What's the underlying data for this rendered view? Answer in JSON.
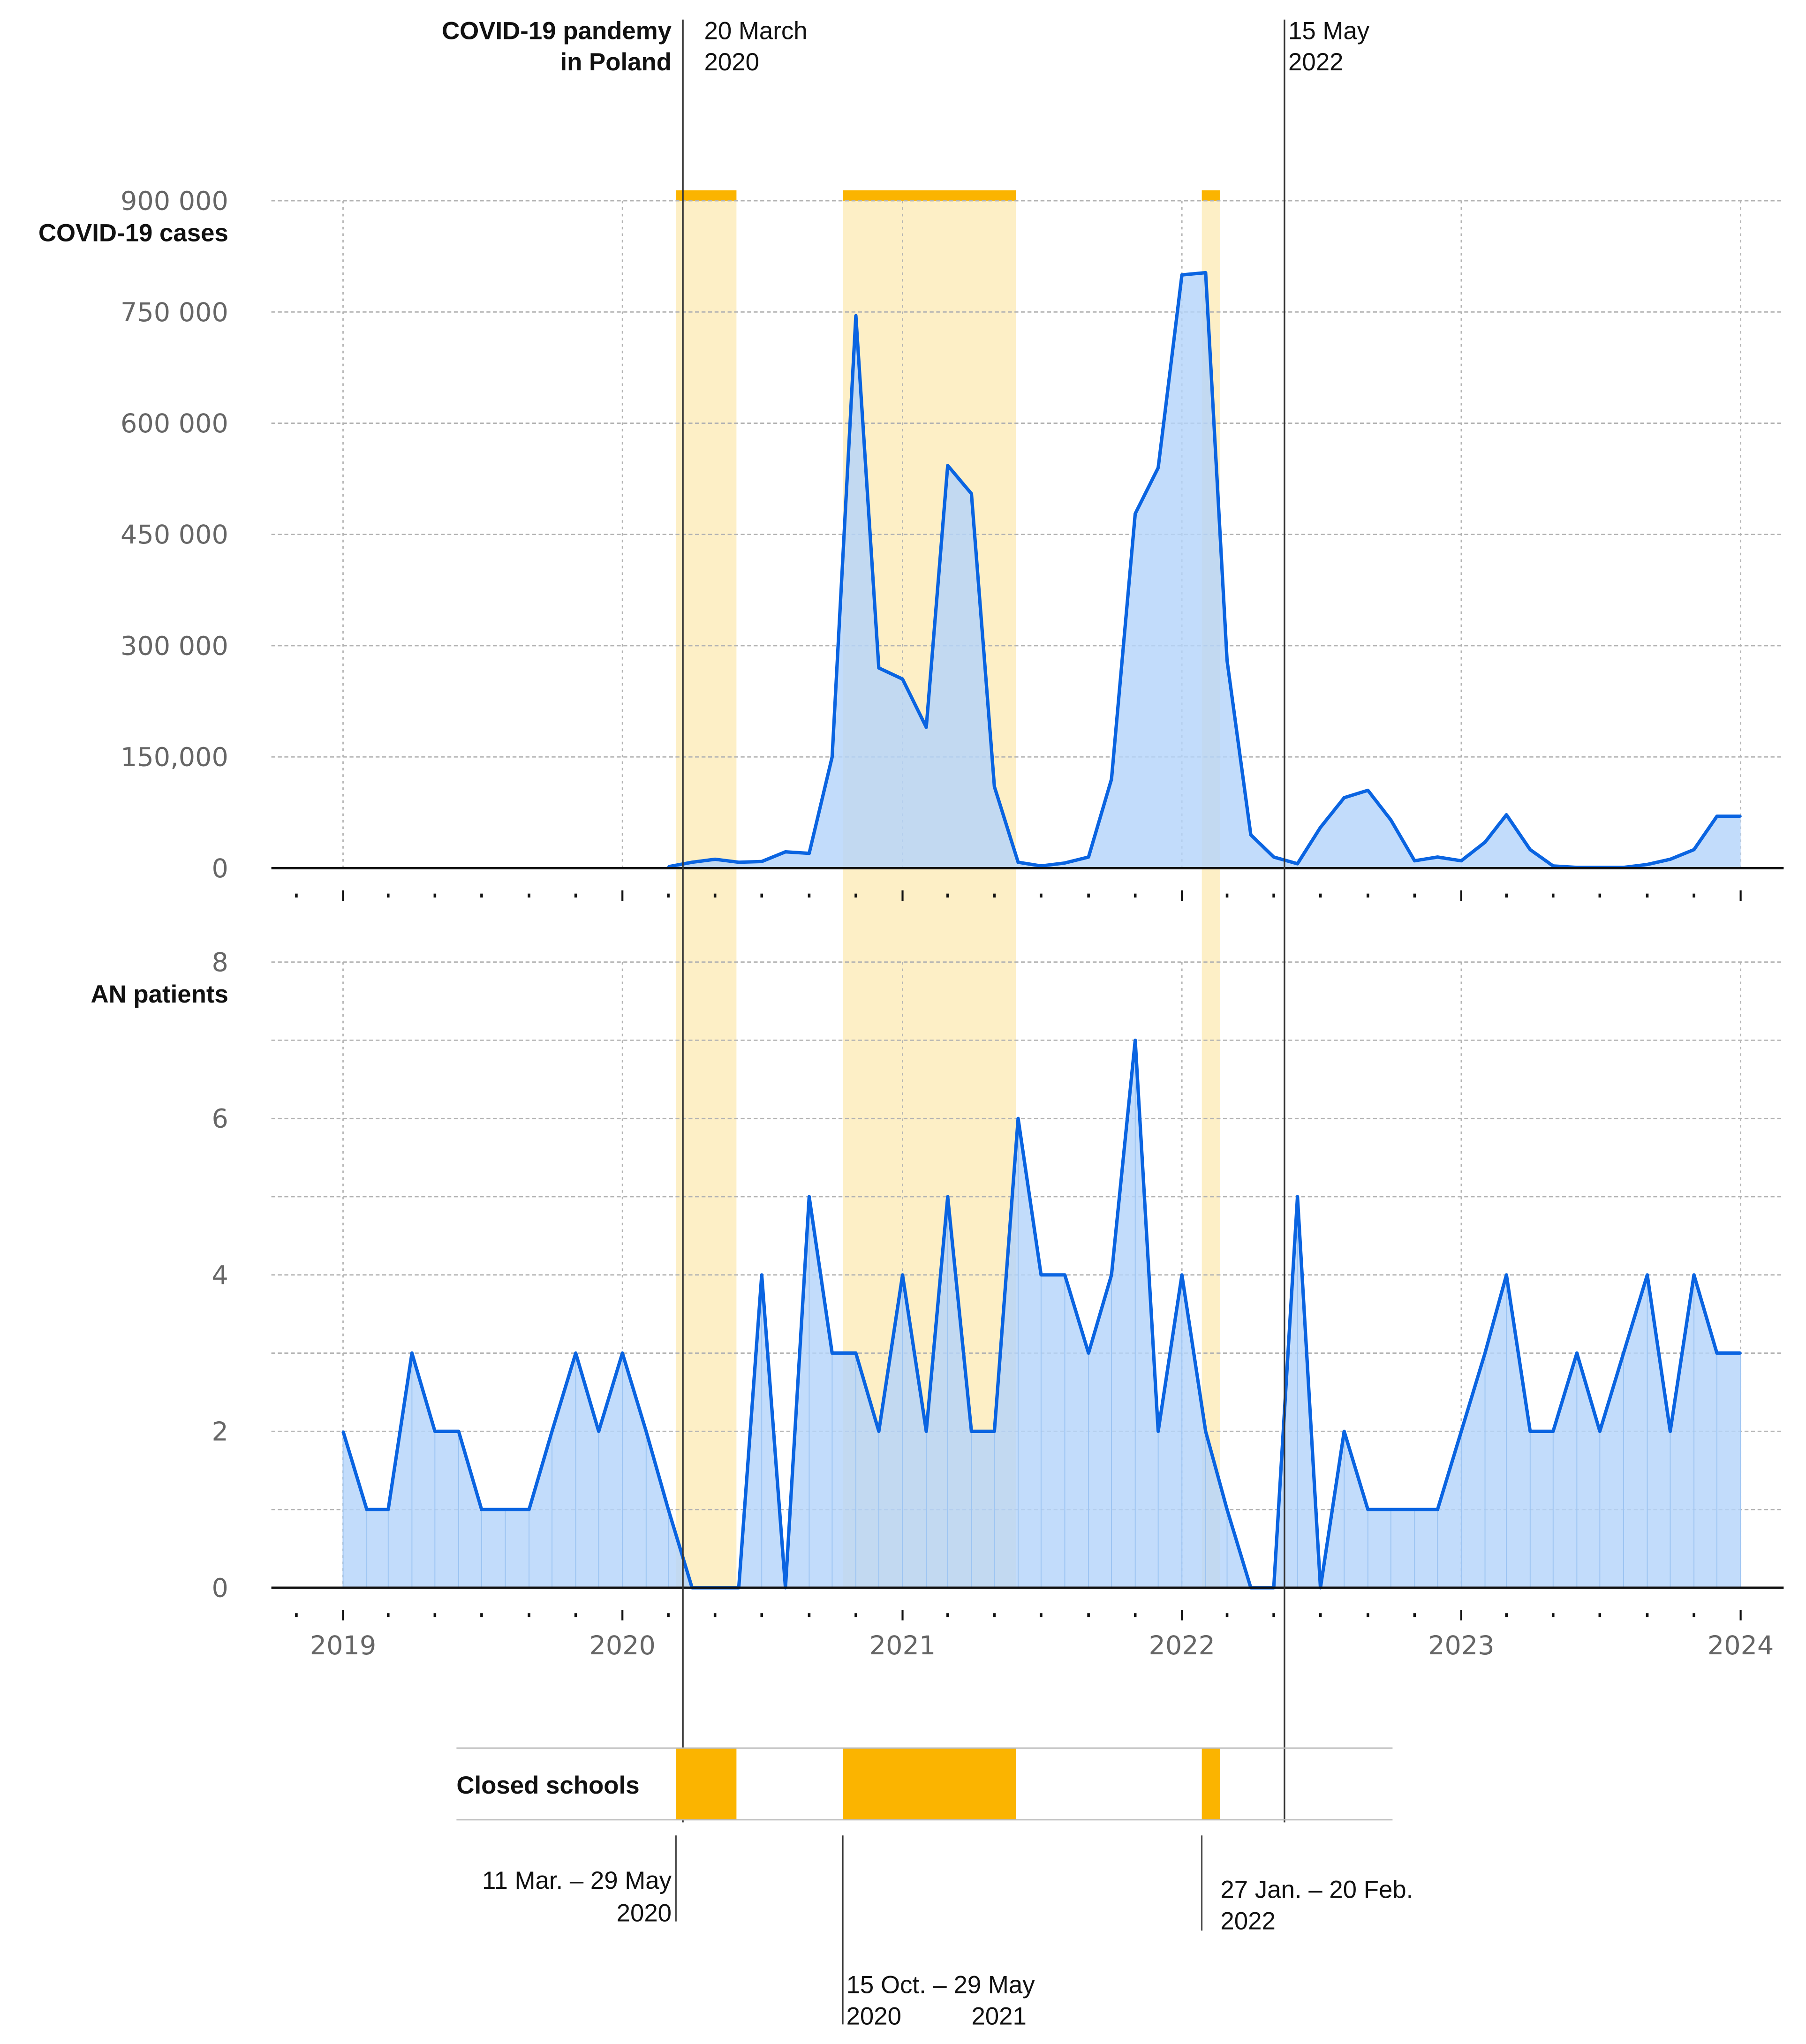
{
  "colors": {
    "line": "#0a64e1",
    "area": "#b4d4fa",
    "period_band": "#fdefc6",
    "period_bar": "#fbb400",
    "grid": "#b3b3b3",
    "axis": "#111111",
    "guide": "#333333"
  },
  "annotations": {
    "pandemic_label_1": "COVID-19 pandemy",
    "pandemic_label_2": "in Poland",
    "start_date_1": "20 March",
    "start_date_2": "2020",
    "end_date_1": "15 May",
    "end_date_2": "2022"
  },
  "schools": {
    "label": "Closed schools",
    "periods": [
      {
        "start": "2020-03-11",
        "end": "2020-05-29",
        "label_1": "11 Mar. – 29 May",
        "label_2": "2020",
        "label_3": ""
      },
      {
        "start": "2020-10-15",
        "end": "2021-05-29",
        "label_1": "15 Oct. – 29 May",
        "label_2": "2020",
        "label_3": "2021"
      },
      {
        "start": "2022-01-27",
        "end": "2022-02-20",
        "label_1": "27 Jan. – 20 Feb.",
        "label_2": "2022",
        "label_3": ""
      }
    ]
  },
  "chart_data": [
    {
      "type": "area",
      "ylabel": "COVID-19 cases",
      "ylim": [
        0,
        900000
      ],
      "y_ticks": [
        0,
        150000,
        300000,
        450000,
        600000,
        750000,
        900000
      ],
      "y_tick_labels": [
        "0",
        "150,000",
        "300 000",
        "450 000",
        "600 000",
        "750 000",
        "900 000"
      ],
      "x_range": [
        "2018-11-01",
        "2024-02-01"
      ],
      "grid": true,
      "x": [
        "2020-03",
        "2020-04",
        "2020-05",
        "2020-06",
        "2020-07",
        "2020-08",
        "2020-09",
        "2020-10",
        "2020-11",
        "2020-12",
        "2021-01",
        "2021-02",
        "2021-03",
        "2021-04",
        "2021-05",
        "2021-06",
        "2021-07",
        "2021-08",
        "2021-09",
        "2021-10",
        "2021-11",
        "2021-12",
        "2022-01",
        "2022-02",
        "2022-03",
        "2022-04",
        "2022-05",
        "2022-06",
        "2022-07",
        "2022-08",
        "2022-09",
        "2022-10",
        "2022-11",
        "2022-12",
        "2023-01",
        "2023-02",
        "2023-03",
        "2023-04",
        "2023-05",
        "2023-06",
        "2023-07",
        "2023-08",
        "2023-09",
        "2023-10",
        "2023-11",
        "2023-12",
        "2024-01"
      ],
      "values": [
        2000,
        8000,
        12000,
        8000,
        9000,
        22000,
        20000,
        150000,
        745000,
        270000,
        255000,
        190000,
        543000,
        505000,
        110000,
        8000,
        3000,
        7000,
        15000,
        120000,
        478000,
        540000,
        800000,
        803000,
        280000,
        45000,
        15000,
        6000,
        55000,
        95000,
        105000,
        65000,
        10000,
        15000,
        10000,
        35000,
        72000,
        25000,
        3000,
        1000,
        1000,
        1000,
        5000,
        12000,
        25000,
        70000,
        70000
      ]
    },
    {
      "type": "area",
      "ylabel": "AN patients",
      "ylim": [
        0,
        8
      ],
      "y_ticks": [
        0,
        1,
        2,
        3,
        4,
        5,
        6,
        7,
        8
      ],
      "y_tick_labels": [
        "0",
        "",
        "2",
        "",
        "4",
        "",
        "6",
        "",
        "8"
      ],
      "x_range": [
        "2018-11-01",
        "2024-02-01"
      ],
      "x_tick_labels": [
        "2019",
        "2020",
        "2021",
        "2022",
        "2023",
        "2024"
      ],
      "grid": true,
      "x": [
        "2019-01",
        "2019-02",
        "2019-03",
        "2019-04",
        "2019-05",
        "2019-06",
        "2019-07",
        "2019-08",
        "2019-09",
        "2019-10",
        "2019-11",
        "2019-12",
        "2020-01",
        "2020-02",
        "2020-03",
        "2020-04",
        "2020-05",
        "2020-06",
        "2020-07",
        "2020-08",
        "2020-09",
        "2020-10",
        "2020-11",
        "2020-12",
        "2021-01",
        "2021-02",
        "2021-03",
        "2021-04",
        "2021-05",
        "2021-06",
        "2021-07",
        "2021-08",
        "2021-09",
        "2021-10",
        "2021-11",
        "2021-12",
        "2022-01",
        "2022-02",
        "2022-03",
        "2022-04",
        "2022-05",
        "2022-06",
        "2022-07",
        "2022-08",
        "2022-09",
        "2022-10",
        "2022-11",
        "2022-12",
        "2023-01",
        "2023-02",
        "2023-03",
        "2023-04",
        "2023-05",
        "2023-06",
        "2023-07",
        "2023-08",
        "2023-09",
        "2023-10",
        "2023-11",
        "2023-12",
        "2024-01"
      ],
      "values": [
        2,
        1,
        1,
        3,
        2,
        2,
        1,
        1,
        1,
        2,
        3,
        2,
        3,
        2,
        1,
        0,
        0,
        0,
        4,
        0,
        5,
        3,
        3,
        2,
        4,
        2,
        5,
        2,
        2,
        6,
        4,
        4,
        3,
        4,
        7,
        2,
        4,
        2,
        1,
        0,
        0,
        5,
        0,
        2,
        1,
        1,
        1,
        1,
        2,
        3,
        4,
        2,
        2,
        3,
        2,
        3,
        4,
        2,
        4,
        3,
        3
      ]
    }
  ]
}
